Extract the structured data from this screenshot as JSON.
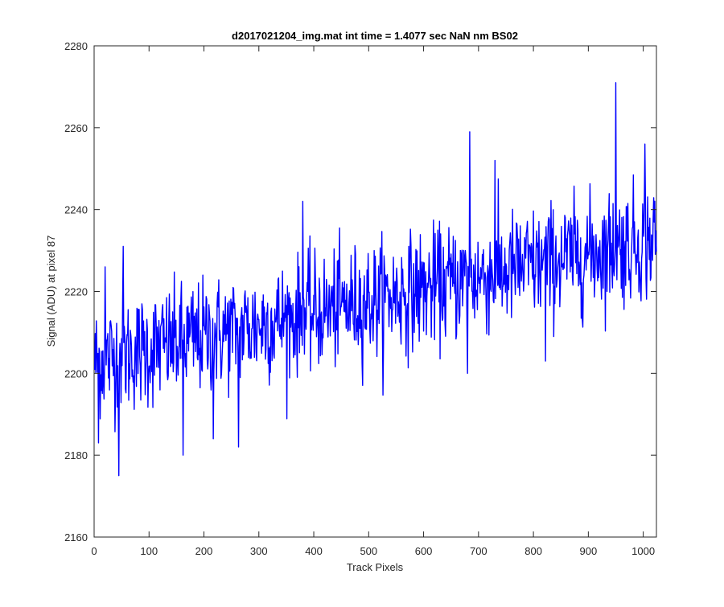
{
  "chart_data": {
    "type": "line",
    "title": "d2017021204_img.mat int time = 1.4077 sec  NaN nm BS02",
    "xlabel": "Track Pixels",
    "ylabel": "Signal (ADU) at pixel 87",
    "xlim": [
      0,
      1024
    ],
    "ylim": [
      2160,
      2280
    ],
    "xticks": [
      0,
      100,
      200,
      300,
      400,
      500,
      600,
      700,
      800,
      900,
      1000
    ],
    "yticks": [
      2160,
      2180,
      2200,
      2220,
      2240,
      2260,
      2280
    ],
    "grid": false,
    "line_color": "#0000ff",
    "series": [
      {
        "n_points": 1024,
        "x_start": 1,
        "x_step": 1,
        "trend": {
          "start": 2203,
          "end": 2233
        },
        "noise_amplitude": 7,
        "notable_points": [
          {
            "x": 8,
            "y": 2183
          },
          {
            "x": 20,
            "y": 2226
          },
          {
            "x": 45,
            "y": 2175
          },
          {
            "x": 53,
            "y": 2231
          },
          {
            "x": 162,
            "y": 2180
          },
          {
            "x": 217,
            "y": 2184
          },
          {
            "x": 263,
            "y": 2182
          },
          {
            "x": 380,
            "y": 2242
          },
          {
            "x": 680,
            "y": 2200
          },
          {
            "x": 684,
            "y": 2259
          },
          {
            "x": 730,
            "y": 2252
          },
          {
            "x": 822,
            "y": 2203
          },
          {
            "x": 950,
            "y": 2271
          },
          {
            "x": 1003,
            "y": 2256
          }
        ]
      }
    ]
  }
}
